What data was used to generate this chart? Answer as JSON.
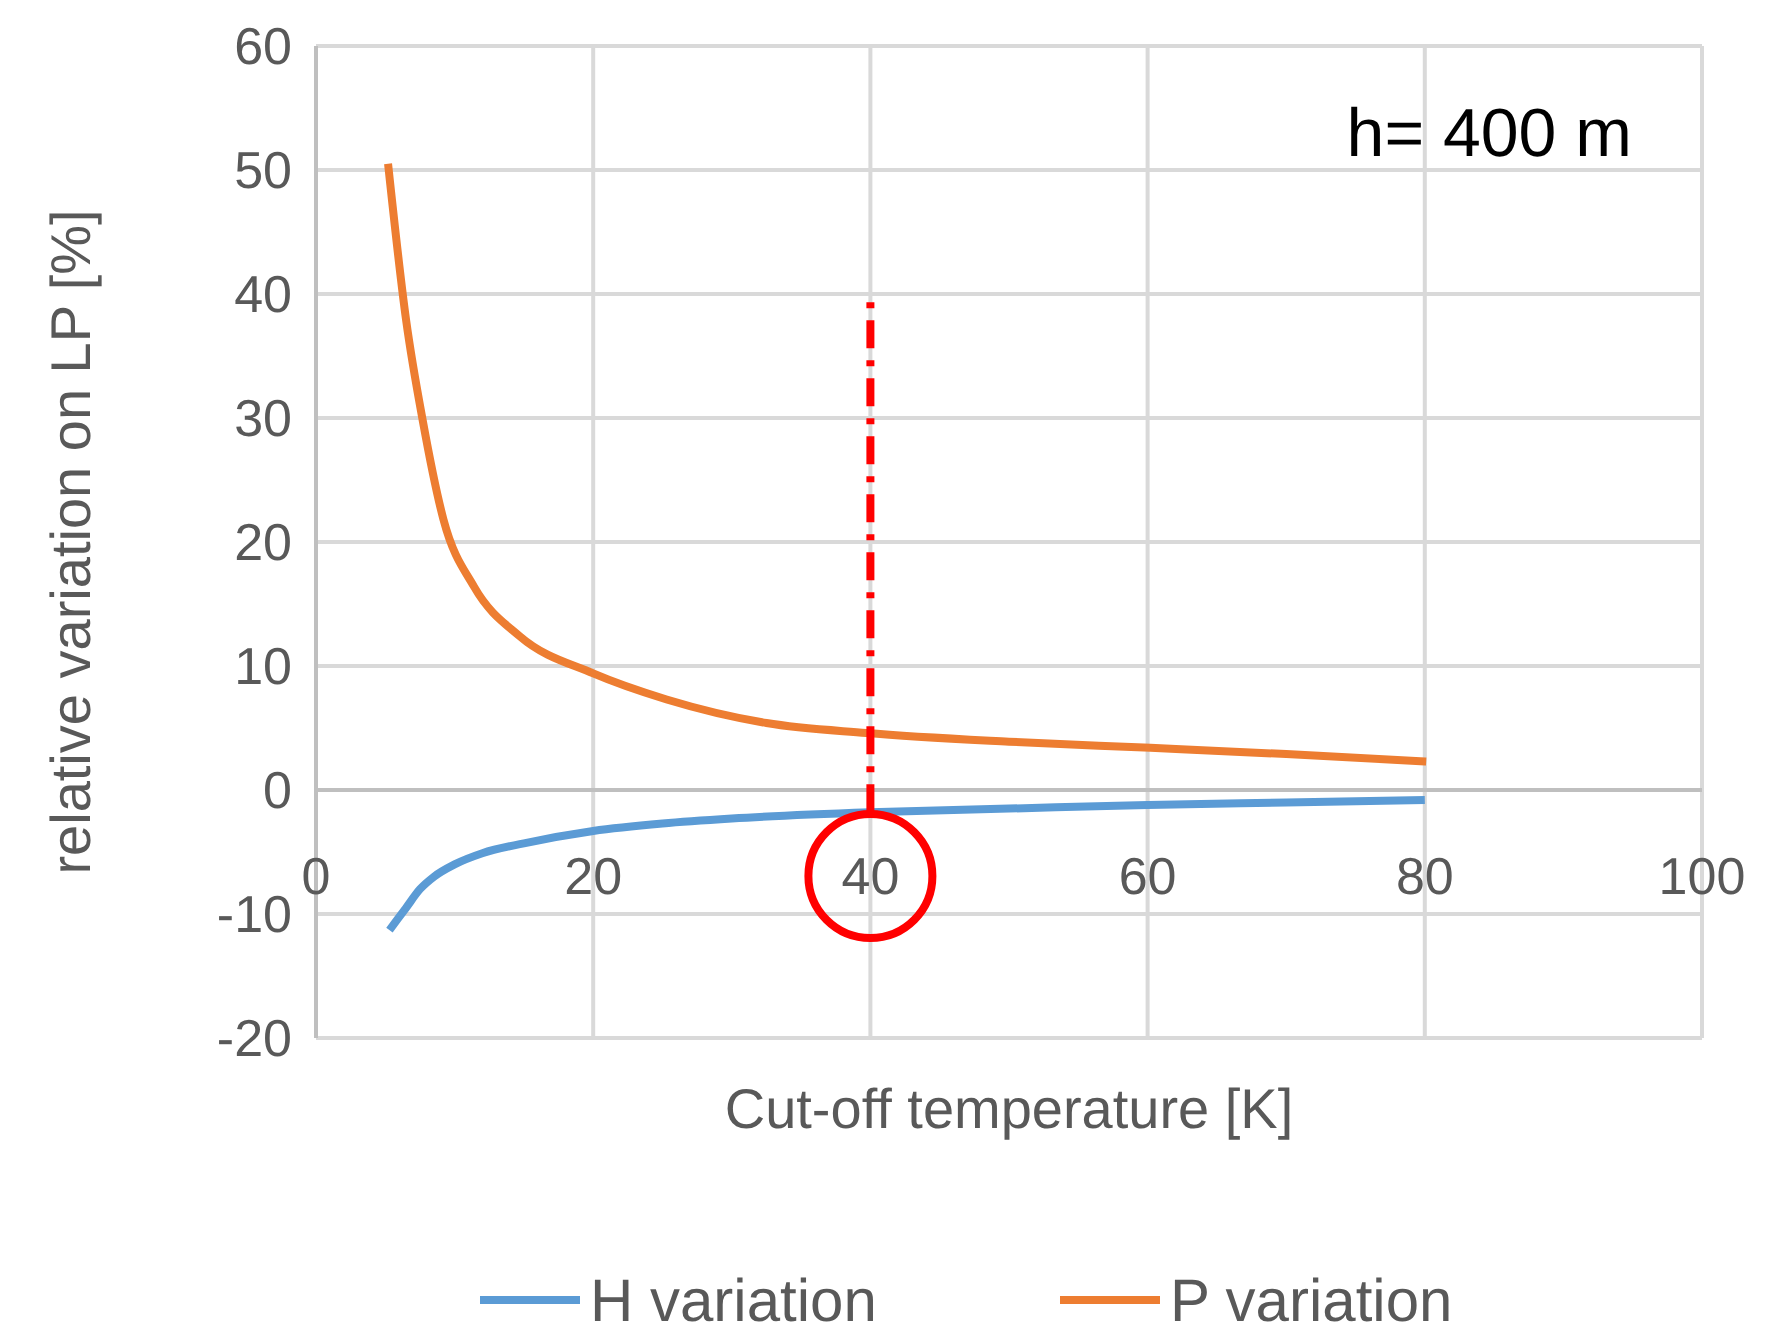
{
  "chart_data": {
    "type": "line",
    "xlabel": "Cut-off temperature [K]",
    "ylabel": "relative variation on LP [%]",
    "xlim": [
      0,
      100
    ],
    "xticks": [
      0,
      20,
      40,
      60,
      80,
      100
    ],
    "ylim": [
      -20,
      60
    ],
    "yticks": [
      -20,
      -10,
      0,
      10,
      20,
      30,
      40,
      50,
      60
    ],
    "grid": true,
    "legend": "bottom",
    "line_style": "solid",
    "marker": "none",
    "annotations": [
      "h= 400 m"
    ],
    "series": [
      {
        "name": "H variation",
        "color": "#5b9bd5",
        "x": [
          5.3,
          6.5,
          7.5,
          8.5,
          10,
          12,
          15,
          20,
          25,
          30,
          40,
          50,
          60,
          70,
          80
        ],
        "values": [
          -11.3,
          -9.5,
          -8,
          -7,
          -6,
          -5.1,
          -4.3,
          -3.3,
          -2.7,
          -2.3,
          -1.8,
          -1.5,
          -1.2,
          -1.0,
          -0.8
        ]
      },
      {
        "name": "P variation",
        "color": "#ed7d31",
        "x": [
          5.2,
          6.5,
          7.7,
          9.2,
          11.4,
          14.7,
          20,
          25.3,
          32.5,
          39.7,
          50,
          60.2,
          70,
          80.1
        ],
        "values": [
          50.5,
          37.9,
          29.8,
          21.8,
          16.4,
          12.4,
          9.4,
          7.3,
          5.4,
          4.6,
          3.9,
          3.4,
          2.9,
          2.3
        ]
      },
      {
        "type": "line",
        "color": "#ff0000",
        "line_style": "dashed",
        "x": [
          40,
          40
        ],
        "values": [
          -1.8,
          40
        ]
      }
    ]
  }
}
